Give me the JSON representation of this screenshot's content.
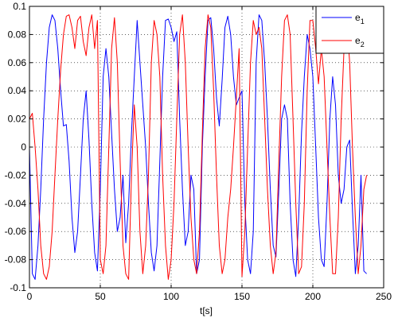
{
  "chart_data": {
    "type": "line",
    "title": "",
    "xlabel": "t[s]",
    "ylabel": "",
    "xlim": [
      0,
      250
    ],
    "ylim": [
      -0.1,
      0.1
    ],
    "grid": true,
    "grid_style": "dotted",
    "legend_position": "top-right",
    "xticks": [
      0,
      50,
      100,
      150,
      200,
      250
    ],
    "xtick_labels": [
      "0",
      "50",
      "100",
      "150",
      "200",
      "250"
    ],
    "yticks": [
      -0.1,
      -0.08,
      -0.06,
      -0.04,
      -0.02,
      0,
      0.02,
      0.04,
      0.06,
      0.08,
      0.1
    ],
    "ytick_labels": [
      "-0.1",
      "-0.08",
      "-0.06",
      "-0.04",
      "-0.02",
      "0",
      "0.02",
      "0.04",
      "0.06",
      "0.08",
      "0.1"
    ],
    "series": [
      {
        "name": "e",
        "subscript": "1",
        "color": "#0000ff",
        "x": [
          0,
          2,
          4,
          6,
          8,
          10,
          12,
          14,
          16,
          18,
          20,
          22,
          24,
          26,
          28,
          30,
          32,
          34,
          36,
          38,
          40,
          42,
          44,
          46,
          48,
          50,
          52,
          54,
          56,
          58,
          60,
          62,
          64,
          66,
          68,
          70,
          72,
          74,
          76,
          78,
          80,
          82,
          84,
          86,
          88,
          90,
          92,
          94,
          96,
          98,
          100,
          102,
          104,
          106,
          108,
          110,
          112,
          114,
          116,
          118,
          120,
          122,
          124,
          126,
          128,
          130,
          132,
          134,
          136,
          138,
          140,
          142,
          144,
          146,
          148,
          150,
          152,
          154,
          156,
          158,
          160,
          162,
          164,
          166,
          168,
          170,
          172,
          174,
          176,
          178,
          180,
          182,
          184,
          186,
          188,
          190,
          192,
          194,
          196,
          198,
          200,
          202,
          204,
          206,
          208,
          210,
          212,
          214,
          216,
          218,
          220,
          222,
          224,
          226,
          228,
          230,
          232,
          234,
          236,
          238
        ],
        "y": [
          0.0,
          -0.09,
          -0.094,
          -0.07,
          -0.03,
          0.02,
          0.06,
          0.085,
          0.094,
          0.09,
          0.07,
          0.04,
          0.015,
          0.016,
          -0.01,
          -0.05,
          -0.075,
          -0.06,
          -0.02,
          0.02,
          0.04,
          0.005,
          -0.04,
          -0.075,
          -0.088,
          -0.03,
          0.05,
          0.07,
          0.05,
          0.01,
          -0.03,
          -0.06,
          -0.05,
          -0.02,
          -0.068,
          -0.04,
          0.01,
          0.05,
          0.09,
          0.06,
          0.03,
          0.0,
          -0.04,
          -0.075,
          -0.088,
          -0.07,
          -0.01,
          0.05,
          0.09,
          0.091,
          0.085,
          0.075,
          0.082,
          0.02,
          -0.03,
          -0.07,
          -0.06,
          -0.02,
          -0.03,
          -0.09,
          -0.08,
          0.0,
          0.05,
          0.09,
          0.092,
          0.07,
          0.035,
          0.015,
          0.048,
          0.085,
          0.093,
          0.08,
          0.05,
          0.03,
          0.035,
          0.04,
          -0.04,
          -0.08,
          -0.09,
          -0.06,
          0.06,
          0.094,
          0.09,
          0.06,
          0.02,
          -0.03,
          -0.07,
          -0.078,
          -0.03,
          0.02,
          0.03,
          0.02,
          -0.04,
          -0.08,
          -0.092,
          -0.05,
          0.01,
          0.05,
          0.08,
          0.07,
          0.05,
          0.0,
          -0.05,
          -0.08,
          -0.085,
          -0.04,
          0.02,
          0.05,
          0.03,
          -0.02,
          -0.04,
          -0.03,
          0.0,
          0.005,
          -0.045,
          -0.09,
          -0.07,
          -0.02,
          -0.088,
          -0.09
        ]
      },
      {
        "name": "e",
        "subscript": "2",
        "color": "#ff0000",
        "x": [
          0,
          2,
          4,
          6,
          8,
          10,
          12,
          14,
          16,
          18,
          20,
          22,
          24,
          26,
          28,
          30,
          32,
          34,
          36,
          38,
          40,
          42,
          44,
          46,
          48,
          50,
          52,
          54,
          56,
          58,
          60,
          62,
          64,
          66,
          68,
          70,
          72,
          74,
          76,
          78,
          80,
          82,
          84,
          86,
          88,
          90,
          92,
          94,
          96,
          98,
          100,
          102,
          104,
          106,
          108,
          110,
          112,
          114,
          116,
          118,
          120,
          122,
          124,
          126,
          128,
          130,
          132,
          134,
          136,
          138,
          140,
          142,
          144,
          146,
          148,
          150,
          152,
          154,
          156,
          158,
          160,
          162,
          164,
          166,
          168,
          170,
          172,
          174,
          176,
          178,
          180,
          182,
          184,
          186,
          188,
          190,
          192,
          194,
          196,
          198,
          200,
          202,
          204,
          206,
          208,
          210,
          212,
          214,
          216,
          218,
          220,
          222,
          224,
          226,
          228,
          230,
          232,
          234,
          236,
          238
        ],
        "y": [
          0.02,
          0.024,
          0.0,
          -0.03,
          -0.07,
          -0.09,
          -0.094,
          -0.085,
          -0.06,
          -0.02,
          0.02,
          0.055,
          0.08,
          0.093,
          0.094,
          0.085,
          0.07,
          0.09,
          0.093,
          0.075,
          0.065,
          0.085,
          0.094,
          0.07,
          0.09,
          -0.08,
          -0.09,
          -0.07,
          0.0,
          0.07,
          0.092,
          0.06,
          -0.01,
          -0.07,
          -0.09,
          -0.094,
          -0.02,
          0.03,
          0.0,
          -0.06,
          -0.09,
          -0.07,
          -0.02,
          0.06,
          0.09,
          0.08,
          0.05,
          -0.02,
          -0.07,
          -0.094,
          -0.08,
          -0.04,
          0.02,
          0.08,
          0.094,
          0.06,
          0.0,
          -0.05,
          -0.08,
          -0.09,
          -0.06,
          0.01,
          0.07,
          0.094,
          0.085,
          0.04,
          -0.02,
          -0.07,
          -0.09,
          -0.08,
          -0.05,
          -0.03,
          0.0,
          0.035,
          0.07,
          -0.092,
          -0.06,
          0.0,
          0.06,
          0.09,
          0.08,
          0.085,
          0.07,
          0.02,
          -0.03,
          -0.07,
          -0.09,
          -0.075,
          -0.01,
          0.05,
          0.09,
          0.094,
          0.08,
          0.02,
          -0.04,
          -0.09,
          -0.085,
          -0.04,
          0.04,
          0.09,
          0.09,
          0.07,
          0.045,
          0.07,
          0.05,
          0.0,
          -0.05,
          -0.09,
          -0.09,
          -0.05,
          0.02,
          0.07,
          0.09,
          0.06,
          0.0,
          -0.05,
          -0.09,
          -0.07,
          -0.03,
          -0.02
        ]
      }
    ]
  }
}
